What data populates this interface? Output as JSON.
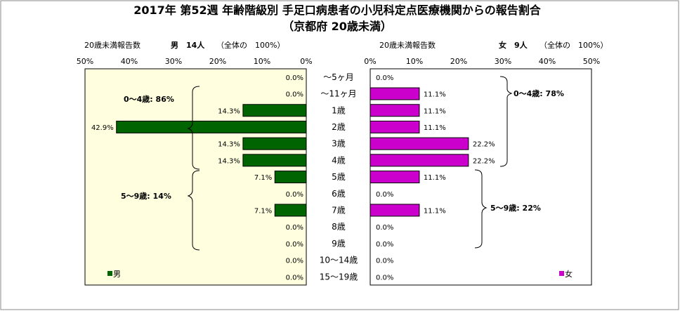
{
  "chart_data": {
    "type": "bar",
    "title_line1": "2017年 第52週 年齢階級別 手足口病患者の小児科定点医療機関からの報告割合",
    "title_line2": "（京都府 20歳未満）",
    "left_header": "20歳未満報告数",
    "left_count": "男　14人",
    "left_total": "（全体の　100%）",
    "right_header": "20歳未満報告数",
    "right_count": "女　9人",
    "right_total": "（全体の　100%）",
    "xlim": [
      0,
      50
    ],
    "left_ticks": [
      "50%",
      "40%",
      "30%",
      "20%",
      "10%",
      "0%"
    ],
    "right_ticks": [
      "0%",
      "10%",
      "20%",
      "30%",
      "40%",
      "50%"
    ],
    "categories": [
      "～5ヶ月",
      "～11ヶ月",
      "1歳",
      "2歳",
      "3歳",
      "4歳",
      "5歳",
      "6歳",
      "7歳",
      "8歳",
      "9歳",
      "10～14歳",
      "15～19歳"
    ],
    "series": [
      {
        "name": "男",
        "color": "#006400",
        "values": [
          0.0,
          0.0,
          14.3,
          42.9,
          14.3,
          14.3,
          7.1,
          0.0,
          7.1,
          0.0,
          0.0,
          0.0,
          0.0
        ],
        "labels": [
          "0.0%",
          "0.0%",
          "14.3%",
          "42.9%",
          "14.3%",
          "14.3%",
          "7.1%",
          "0.0%",
          "7.1%",
          "0.0%",
          "0.0%",
          "0.0%",
          "0.0%"
        ]
      },
      {
        "name": "女",
        "color": "#cc00cc",
        "values": [
          0.0,
          11.1,
          11.1,
          11.1,
          22.2,
          22.2,
          11.1,
          0.0,
          11.1,
          0.0,
          0.0,
          0.0,
          0.0
        ],
        "labels": [
          "0.0%",
          "11.1%",
          "11.1%",
          "11.1%",
          "22.2%",
          "22.2%",
          "11.1%",
          "0.0%",
          "11.1%",
          "0.0%",
          "0.0%",
          "0.0%",
          "0.0%"
        ]
      }
    ],
    "annotations": {
      "male_0_4": "0～4歳: 86%",
      "male_5_9": "5～9歳: 14%",
      "female_0_4": "0～4歳: 78%",
      "female_5_9": "5～9歳: 22%"
    },
    "legend_male": "男",
    "legend_female": "女"
  }
}
